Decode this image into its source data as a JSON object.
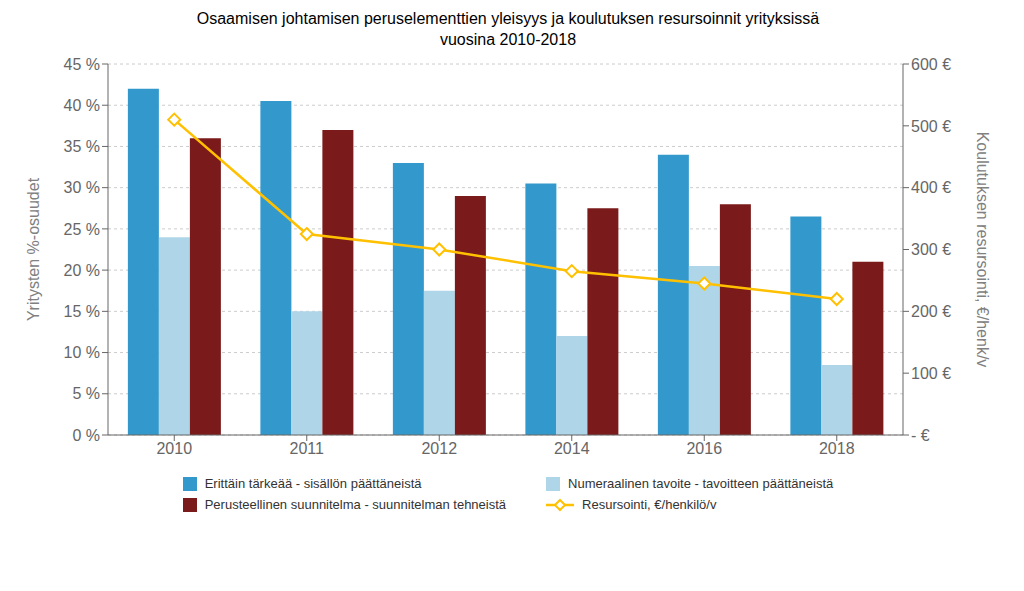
{
  "chart_data": {
    "type": "bar",
    "title": "Osaamisen johtamisen peruselementtien yleisyys ja koulutuksen resursoinnit yrityksissä",
    "subtitle": "vuosina 2010-2018",
    "categories": [
      "2010",
      "2011",
      "2012",
      "2014",
      "2016",
      "2018"
    ],
    "series": [
      {
        "name": "Erittäin tärkeää - sisällön päättäneistä",
        "color": "#3399CC",
        "values": [
          0.42,
          0.405,
          0.33,
          0.305,
          0.34,
          0.265
        ]
      },
      {
        "name": "Numeraalinen tavoite - tavoitteen päättäneistä",
        "color": "#AED6E8",
        "values": [
          0.24,
          0.15,
          0.175,
          0.12,
          0.205,
          0.085
        ]
      },
      {
        "name": "Perusteellinen suunnitelma - suunnitelman tehneistä",
        "color": "#7B1A1A",
        "values": [
          0.36,
          0.37,
          0.29,
          0.275,
          0.28,
          0.21
        ]
      },
      {
        "name": "Resursointi, €/henkilö/v",
        "color": "#FFC000",
        "type": "line",
        "axis": "y2",
        "marker": "diamond",
        "values": [
          510,
          325,
          300,
          265,
          245,
          220
        ]
      }
    ],
    "ylabel": "Yritysten %-osuudet",
    "y2label": "Koulutuksen resursointi, €/henk/v",
    "ylim": [
      0,
      0.45
    ],
    "yticks": [
      {
        "value": 0,
        "label": "0 %"
      },
      {
        "value": 0.05,
        "label": "5 %"
      },
      {
        "value": 0.1,
        "label": "10 %"
      },
      {
        "value": 0.15,
        "label": "15 %"
      },
      {
        "value": 0.2,
        "label": "20 %"
      },
      {
        "value": 0.25,
        "label": "25 %"
      },
      {
        "value": 0.3,
        "label": "30 %"
      },
      {
        "value": 0.35,
        "label": "35 %"
      },
      {
        "value": 0.4,
        "label": "40 %"
      },
      {
        "value": 0.45,
        "label": "45 %"
      }
    ],
    "y2lim": [
      0,
      600
    ],
    "y2ticks": [
      {
        "value": 0,
        "label": "- €"
      },
      {
        "value": 100,
        "label": "100 €"
      },
      {
        "value": 200,
        "label": "200 €"
      },
      {
        "value": 300,
        "label": "300 €"
      },
      {
        "value": 400,
        "label": "400 €"
      },
      {
        "value": 500,
        "label": "500 €"
      },
      {
        "value": 600,
        "label": "600 €"
      }
    ],
    "grid": true,
    "legend": "bottom"
  }
}
